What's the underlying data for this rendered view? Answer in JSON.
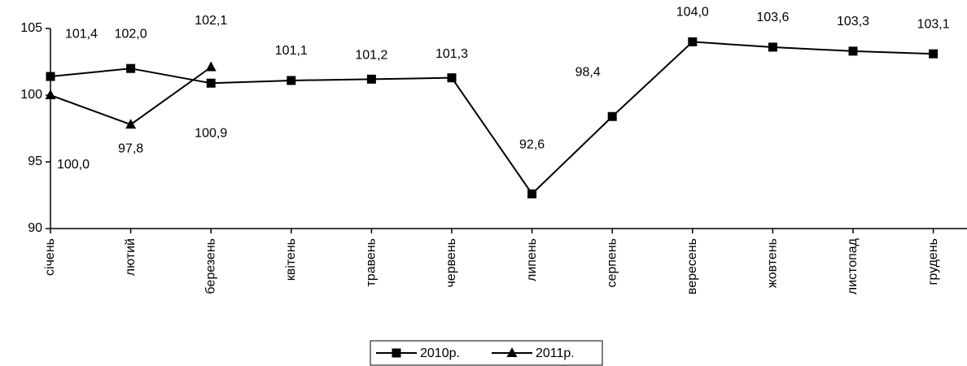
{
  "chart_data": {
    "type": "line",
    "categories": [
      "січень",
      "лютий",
      "березень",
      "квітень",
      "травень",
      "червень",
      "липень",
      "серпень",
      "вересень",
      "жовтень",
      "листопад",
      "грудень"
    ],
    "series": [
      {
        "name": "2010р.",
        "color": "#000000",
        "marker": "square",
        "values": [
          101.4,
          102.0,
          100.9,
          101.1,
          101.2,
          101.3,
          92.6,
          98.4,
          104.0,
          103.6,
          103.3,
          103.1
        ],
        "value_labels": [
          "101,4",
          "102,0",
          "100,9",
          "101,1",
          "101,2",
          "101,3",
          "92,6",
          "98,4",
          "104,0",
          "103,6",
          "103,3",
          "103,1"
        ]
      },
      {
        "name": "2011р.",
        "color": "#000000",
        "marker": "triangle",
        "values": [
          100.0,
          97.8,
          102.1,
          null,
          null,
          null,
          null,
          null,
          null,
          null,
          null,
          null
        ],
        "value_labels": [
          "100,0",
          "97,8",
          "102,1",
          null,
          null,
          null,
          null,
          null,
          null,
          null,
          null,
          null
        ]
      }
    ],
    "ylim": [
      90,
      105
    ],
    "yticks": [
      90,
      95,
      100,
      105
    ],
    "grid": false,
    "legend": "bottom"
  }
}
